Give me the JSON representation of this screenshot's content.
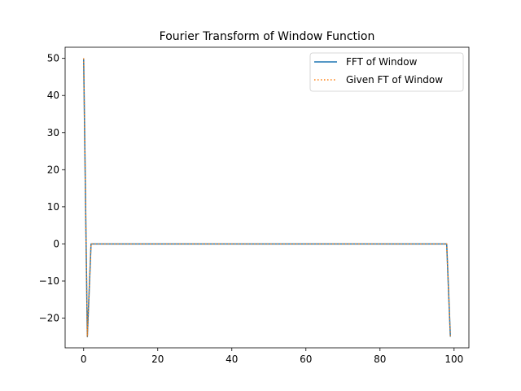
{
  "chart_data": {
    "type": "line",
    "title": "Fourier Transform of Window Function",
    "xlabel": "",
    "ylabel": "",
    "xlim": [
      -5,
      104
    ],
    "ylim": [
      -28,
      53
    ],
    "x_ticks": [
      0,
      20,
      40,
      60,
      80,
      100
    ],
    "y_ticks": [
      -20,
      -10,
      0,
      10,
      20,
      30,
      40,
      50
    ],
    "grid": false,
    "legend_position": "top-right",
    "series": [
      {
        "name": "FFT of Window",
        "color": "#1f77b4",
        "style": "solid",
        "points": [
          [
            0,
            50
          ],
          [
            1,
            -25
          ],
          [
            2,
            0
          ],
          [
            98,
            0
          ],
          [
            99,
            -25
          ]
        ]
      },
      {
        "name": "Given FT of Window",
        "color": "#ff7f0e",
        "style": "dotted",
        "points": [
          [
            0,
            50
          ],
          [
            1,
            -25
          ],
          [
            2,
            0
          ],
          [
            98,
            0
          ],
          [
            99,
            -25
          ]
        ]
      }
    ]
  }
}
